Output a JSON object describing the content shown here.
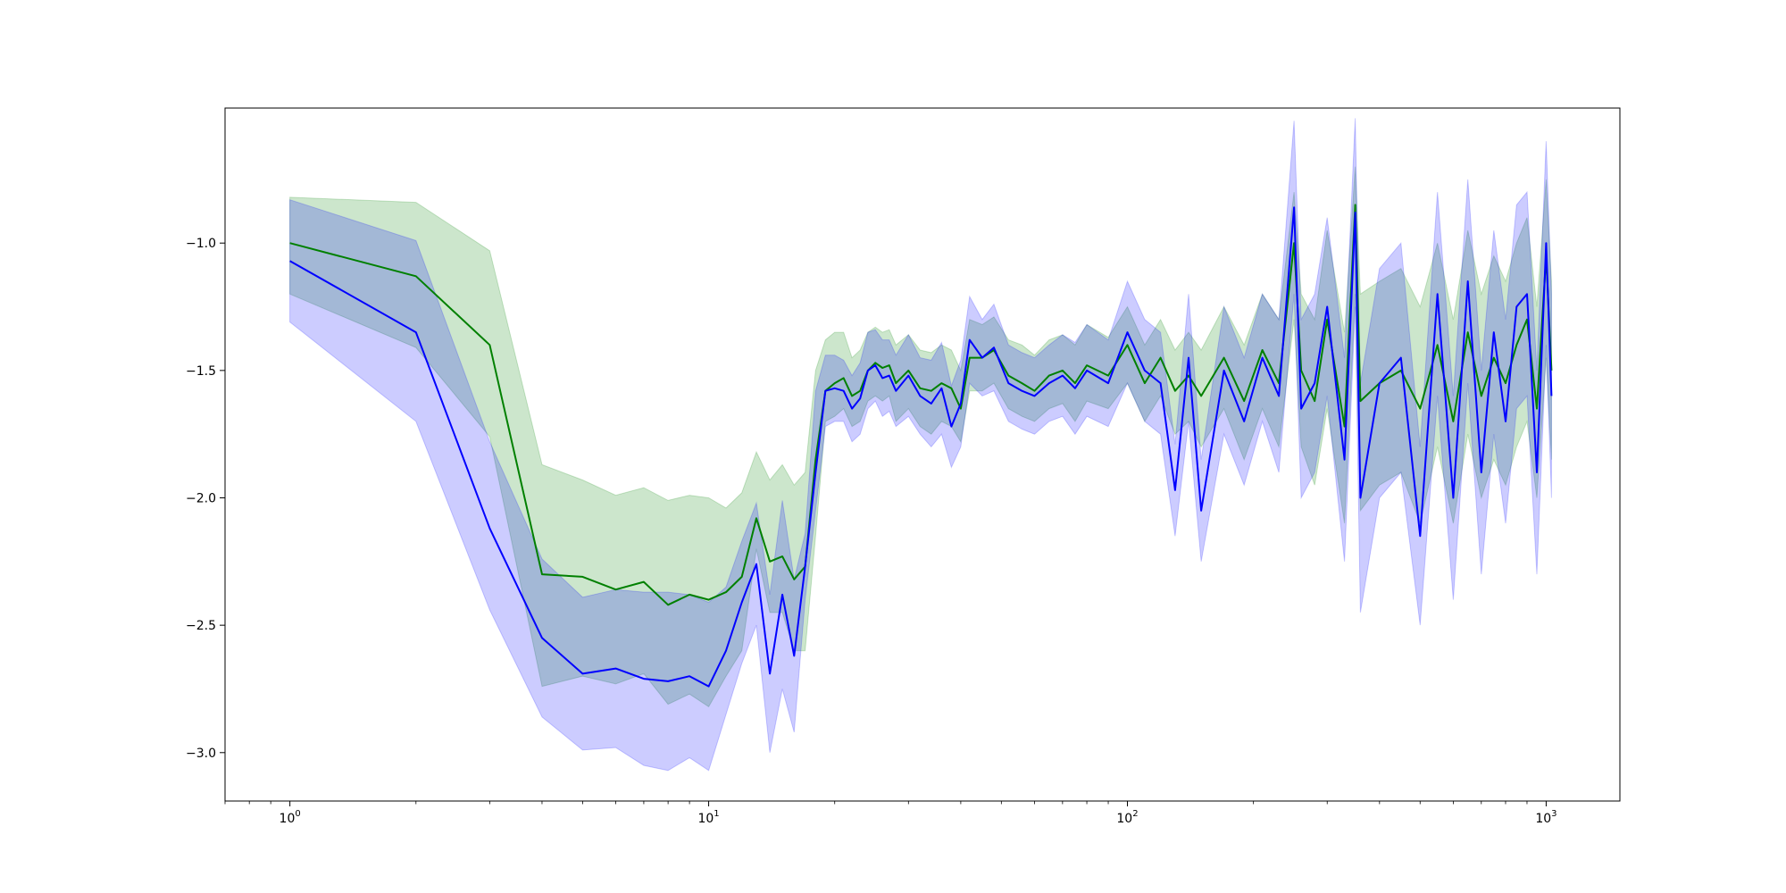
{
  "chart_data": {
    "type": "line",
    "title": "",
    "xlabel": "",
    "ylabel": "",
    "x_scale": "log",
    "xlim": [
      0.7,
      1500
    ],
    "ylim": [
      -3.19,
      -0.47
    ],
    "grid": false,
    "legend": "none",
    "x_ticks": [
      {
        "value": 1,
        "base": "10",
        "exp": "0"
      },
      {
        "value": 10,
        "base": "10",
        "exp": "1"
      },
      {
        "value": 100,
        "base": "10",
        "exp": "2"
      },
      {
        "value": 1000,
        "base": "10",
        "exp": "3"
      }
    ],
    "y_ticks": [
      {
        "value": -1.0,
        "label": "−1.0"
      },
      {
        "value": -1.5,
        "label": "−1.5"
      },
      {
        "value": -2.0,
        "label": "−2.0"
      },
      {
        "value": -2.5,
        "label": "−2.5"
      },
      {
        "value": -3.0,
        "label": "−3.0"
      }
    ],
    "series": [
      {
        "color": "#008000",
        "band_color": "#008000",
        "x": [
          1,
          2,
          3,
          4,
          5,
          6,
          7,
          8,
          9,
          10,
          11,
          12,
          13,
          14,
          15,
          16,
          17,
          18,
          19,
          20,
          21,
          22,
          23,
          24,
          25,
          26,
          27,
          28,
          30,
          32,
          34,
          36,
          38,
          40,
          42,
          45,
          48,
          52,
          56,
          60,
          65,
          70,
          75,
          80,
          90,
          100,
          110,
          120,
          130,
          140,
          150,
          170,
          190,
          210,
          230,
          250,
          260,
          280,
          300,
          330,
          350,
          360,
          400,
          450,
          500,
          550,
          600,
          650,
          700,
          750,
          800,
          850,
          900,
          950,
          1000,
          1030
        ],
        "y": [
          -1.0,
          -1.13,
          -1.4,
          -2.3,
          -2.31,
          -2.36,
          -2.33,
          -2.42,
          -2.38,
          -2.4,
          -2.37,
          -2.31,
          -2.08,
          -2.25,
          -2.23,
          -2.32,
          -2.27,
          -1.85,
          -1.58,
          -1.55,
          -1.53,
          -1.6,
          -1.58,
          -1.5,
          -1.47,
          -1.49,
          -1.48,
          -1.55,
          -1.5,
          -1.57,
          -1.58,
          -1.55,
          -1.57,
          -1.65,
          -1.45,
          -1.45,
          -1.42,
          -1.52,
          -1.55,
          -1.58,
          -1.52,
          -1.5,
          -1.55,
          -1.48,
          -1.52,
          -1.4,
          -1.55,
          -1.45,
          -1.58,
          -1.52,
          -1.6,
          -1.45,
          -1.62,
          -1.42,
          -1.55,
          -1.0,
          -1.5,
          -1.62,
          -1.3,
          -1.72,
          -0.85,
          -1.62,
          -1.55,
          -1.5,
          -1.65,
          -1.4,
          -1.7,
          -1.35,
          -1.6,
          -1.45,
          -1.55,
          -1.4,
          -1.3,
          -1.65,
          -1.05,
          -1.5
        ],
        "lower": [
          -1.2,
          -1.41,
          -1.76,
          -2.74,
          -2.7,
          -2.73,
          -2.69,
          -2.81,
          -2.77,
          -2.82,
          -2.7,
          -2.6,
          -2.2,
          -2.45,
          -2.45,
          -2.6,
          -2.6,
          -2.15,
          -1.7,
          -1.68,
          -1.65,
          -1.72,
          -1.7,
          -1.62,
          -1.6,
          -1.62,
          -1.6,
          -1.7,
          -1.65,
          -1.72,
          -1.75,
          -1.7,
          -1.72,
          -1.78,
          -1.58,
          -1.58,
          -1.55,
          -1.65,
          -1.68,
          -1.7,
          -1.65,
          -1.63,
          -1.7,
          -1.62,
          -1.65,
          -1.55,
          -1.7,
          -1.6,
          -1.75,
          -1.7,
          -1.8,
          -1.65,
          -1.85,
          -1.65,
          -1.8,
          -1.3,
          -1.8,
          -1.95,
          -1.65,
          -2.1,
          -1.2,
          -2.05,
          -1.95,
          -1.9,
          -2.1,
          -1.8,
          -2.1,
          -1.75,
          -2.0,
          -1.85,
          -1.95,
          -1.8,
          -1.7,
          -2.0,
          -1.45,
          -1.85
        ],
        "upper": [
          -0.82,
          -0.84,
          -1.03,
          -1.87,
          -1.93,
          -1.99,
          -1.96,
          -2.01,
          -1.99,
          -2.0,
          -2.04,
          -1.98,
          -1.82,
          -1.93,
          -1.87,
          -1.95,
          -1.9,
          -1.5,
          -1.38,
          -1.35,
          -1.35,
          -1.45,
          -1.42,
          -1.35,
          -1.33,
          -1.35,
          -1.34,
          -1.4,
          -1.36,
          -1.42,
          -1.43,
          -1.4,
          -1.42,
          -1.5,
          -1.3,
          -1.32,
          -1.29,
          -1.38,
          -1.4,
          -1.44,
          -1.38,
          -1.36,
          -1.4,
          -1.32,
          -1.37,
          -1.25,
          -1.4,
          -1.3,
          -1.42,
          -1.35,
          -1.42,
          -1.25,
          -1.4,
          -1.2,
          -1.3,
          -0.8,
          -1.2,
          -1.3,
          -0.95,
          -1.35,
          -0.7,
          -1.2,
          -1.15,
          -1.1,
          -1.25,
          -1.0,
          -1.3,
          -0.95,
          -1.2,
          -1.05,
          -1.15,
          -1.0,
          -0.9,
          -1.25,
          -0.75,
          -1.15
        ]
      },
      {
        "color": "#0000ff",
        "band_color": "#0000ff",
        "x": [
          1,
          2,
          3,
          4,
          5,
          6,
          7,
          8,
          9,
          10,
          11,
          12,
          13,
          14,
          15,
          16,
          17,
          18,
          19,
          20,
          21,
          22,
          23,
          24,
          25,
          26,
          27,
          28,
          30,
          32,
          34,
          36,
          38,
          40,
          42,
          45,
          48,
          52,
          56,
          60,
          65,
          70,
          75,
          80,
          90,
          100,
          110,
          120,
          130,
          140,
          150,
          170,
          190,
          210,
          230,
          250,
          260,
          280,
          300,
          330,
          350,
          360,
          400,
          450,
          500,
          550,
          600,
          650,
          700,
          750,
          800,
          850,
          900,
          950,
          1000,
          1030
        ],
        "y": [
          -1.07,
          -1.35,
          -2.12,
          -2.55,
          -2.69,
          -2.67,
          -2.71,
          -2.72,
          -2.7,
          -2.74,
          -2.6,
          -2.41,
          -2.26,
          -2.69,
          -2.38,
          -2.62,
          -2.27,
          -1.9,
          -1.58,
          -1.57,
          -1.58,
          -1.65,
          -1.61,
          -1.5,
          -1.48,
          -1.53,
          -1.52,
          -1.58,
          -1.52,
          -1.6,
          -1.63,
          -1.57,
          -1.72,
          -1.63,
          -1.38,
          -1.45,
          -1.41,
          -1.55,
          -1.58,
          -1.6,
          -1.55,
          -1.52,
          -1.57,
          -1.5,
          -1.55,
          -1.35,
          -1.5,
          -1.55,
          -1.97,
          -1.45,
          -2.05,
          -1.5,
          -1.7,
          -1.45,
          -1.6,
          -0.86,
          -1.65,
          -1.55,
          -1.25,
          -1.85,
          -0.88,
          -2.0,
          -1.55,
          -1.45,
          -2.15,
          -1.2,
          -2.0,
          -1.15,
          -1.9,
          -1.35,
          -1.7,
          -1.25,
          -1.2,
          -1.9,
          -1.0,
          -1.6
        ],
        "lower": [
          -1.31,
          -1.7,
          -2.44,
          -2.86,
          -2.99,
          -2.98,
          -3.05,
          -3.07,
          -3.02,
          -3.07,
          -2.85,
          -2.65,
          -2.5,
          -3.0,
          -2.75,
          -2.92,
          -2.4,
          -2.05,
          -1.72,
          -1.7,
          -1.7,
          -1.78,
          -1.75,
          -1.65,
          -1.62,
          -1.68,
          -1.66,
          -1.72,
          -1.68,
          -1.75,
          -1.8,
          -1.75,
          -1.88,
          -1.8,
          -1.55,
          -1.6,
          -1.58,
          -1.7,
          -1.73,
          -1.75,
          -1.7,
          -1.68,
          -1.75,
          -1.68,
          -1.72,
          -1.55,
          -1.7,
          -1.75,
          -2.15,
          -1.7,
          -2.25,
          -1.75,
          -1.95,
          -1.7,
          -1.9,
          -1.2,
          -2.0,
          -1.9,
          -1.6,
          -2.25,
          -1.25,
          -2.45,
          -2.0,
          -1.9,
          -2.5,
          -1.6,
          -2.4,
          -1.55,
          -2.3,
          -1.75,
          -2.1,
          -1.65,
          -1.6,
          -2.3,
          -1.4,
          -2.0
        ],
        "upper": [
          -0.83,
          -0.99,
          -1.78,
          -2.24,
          -2.39,
          -2.36,
          -2.37,
          -2.37,
          -2.38,
          -2.41,
          -2.35,
          -2.17,
          -2.02,
          -2.38,
          -2.01,
          -2.32,
          -2.14,
          -1.58,
          -1.44,
          -1.44,
          -1.46,
          -1.52,
          -1.47,
          -1.35,
          -1.34,
          -1.38,
          -1.38,
          -1.44,
          -1.36,
          -1.45,
          -1.46,
          -1.39,
          -1.56,
          -1.46,
          -1.21,
          -1.3,
          -1.24,
          -1.4,
          -1.43,
          -1.45,
          -1.4,
          -1.36,
          -1.39,
          -1.32,
          -1.38,
          -1.15,
          -1.3,
          -1.35,
          -1.79,
          -1.2,
          -1.85,
          -1.25,
          -1.45,
          -1.2,
          -1.3,
          -0.52,
          -1.3,
          -1.2,
          -0.9,
          -1.45,
          -0.51,
          -1.55,
          -1.1,
          -1.0,
          -1.8,
          -0.8,
          -1.6,
          -0.75,
          -1.5,
          -0.95,
          -1.3,
          -0.85,
          -0.8,
          -1.5,
          -0.6,
          -1.2
        ]
      }
    ]
  }
}
